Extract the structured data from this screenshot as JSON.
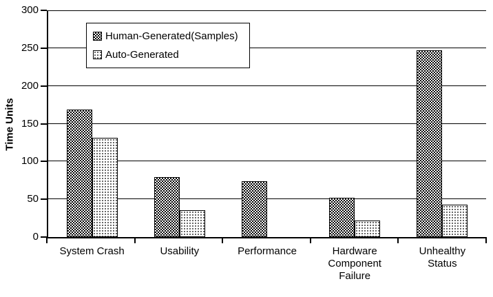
{
  "chart_data": {
    "type": "bar",
    "title": "",
    "ylabel": "Time Units",
    "xlabel": "",
    "ylim": [
      0,
      300
    ],
    "ytick_step": 50,
    "grid": true,
    "legend_position": "top-left-inside",
    "categories": [
      "System Crash",
      "Usability",
      "Performance",
      "Hardware Component Failure",
      "Unhealthy Status"
    ],
    "category_label_lines": [
      [
        "System Crash"
      ],
      [
        "Usability"
      ],
      [
        "Performance"
      ],
      [
        "Hardware",
        "Component",
        "Failure"
      ],
      [
        "Unhealthy",
        "Status"
      ]
    ],
    "series": [
      {
        "name": "Human-Generated(Samples)",
        "pattern": "dark-checker",
        "values": [
          169,
          79,
          74,
          52,
          247
        ]
      },
      {
        "name": "Auto-Generated",
        "pattern": "light-dots",
        "values": [
          131,
          36,
          0,
          22,
          43
        ]
      }
    ],
    "colors": {
      "ink": "#000000",
      "background": "#ffffff"
    }
  }
}
